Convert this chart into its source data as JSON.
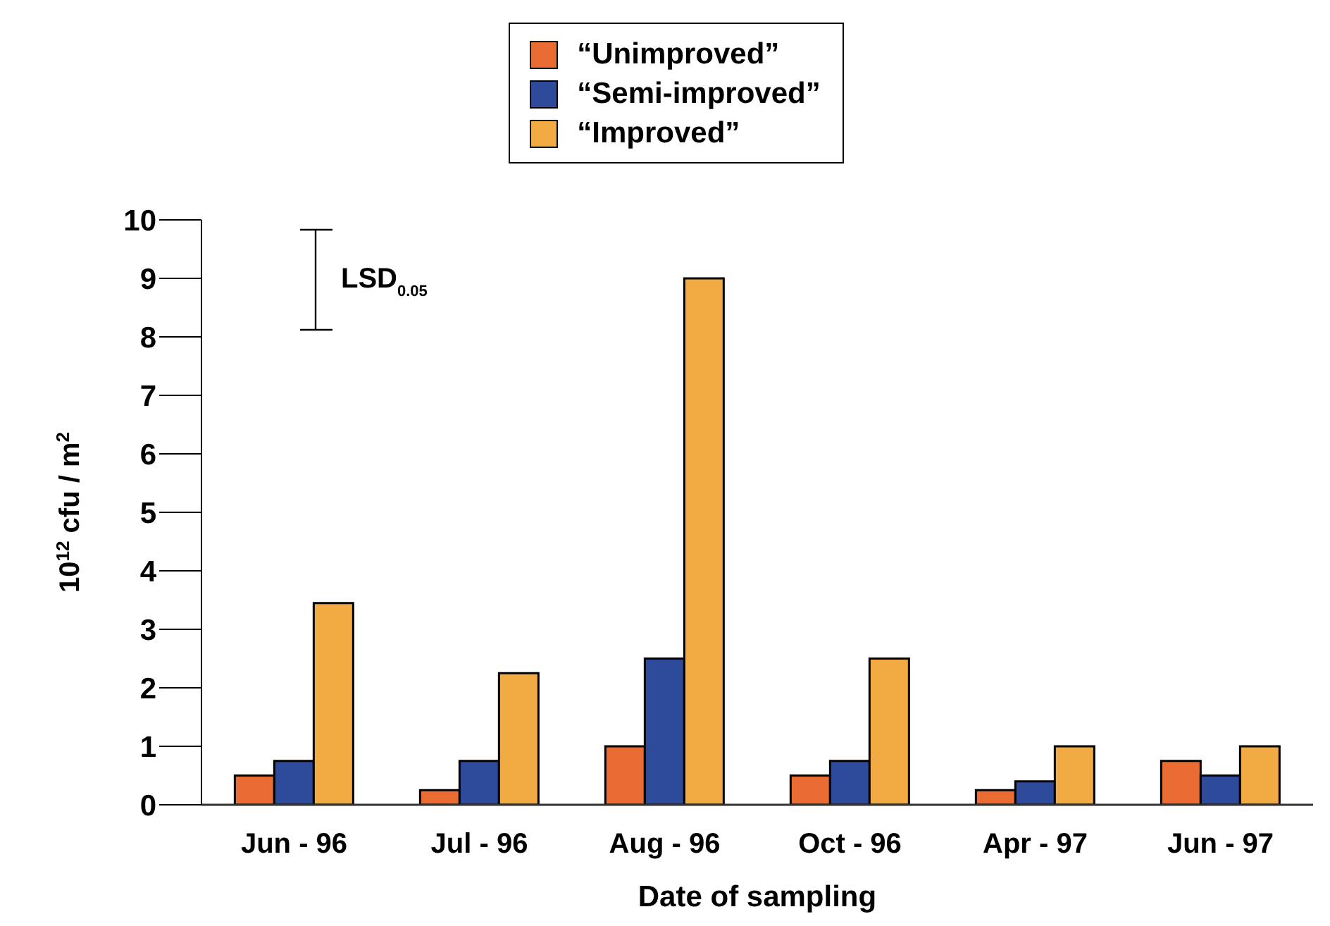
{
  "chart_data": {
    "type": "bar",
    "xlabel": "Date of sampling",
    "ylabel": "10$^{12}$ cfu / m$^{2}$",
    "categories": [
      "Jun - 96",
      "Jul - 96",
      "Aug - 96",
      "Oct - 96",
      "Apr - 97",
      "Jun - 97"
    ],
    "series": [
      {
        "name": "“Unimproved”",
        "color": "#e96d33",
        "values": [
          0.5,
          0.25,
          1,
          0.5,
          0.25,
          0.75
        ]
      },
      {
        "name": "“Semi-improved”",
        "color": "#2e4a9a",
        "values": [
          0.75,
          0.75,
          2.5,
          0.75,
          0.4,
          0.5
        ]
      },
      {
        "name": "“Improved”",
        "color": "#f2aa42",
        "values": [
          3.45,
          2.25,
          9,
          2.5,
          1,
          1
        ]
      }
    ],
    "ylim": [
      0,
      10
    ],
    "yticks": [
      0,
      1,
      2,
      3,
      4,
      5,
      6,
      7,
      8,
      9,
      10
    ],
    "legend": "top",
    "annotations": [
      "LSD$_{0.05}$"
    ]
  }
}
